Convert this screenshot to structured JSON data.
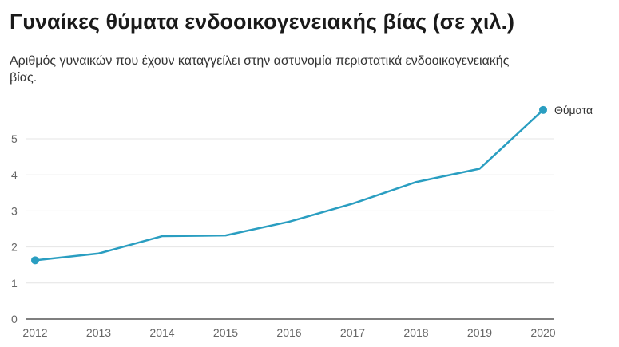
{
  "chart_data": {
    "type": "line",
    "title": "Γυναίκες θύματα ενδοοικογενειακής βίας (σε χιλ.)",
    "subtitle": "Αριθμός γυναικών που έχουν καταγγείλει στην αστυνομία περιστατικά ενδοοικογενειακής βίας.",
    "xlabel": "",
    "ylabel": "",
    "x": [
      "2012",
      "2013",
      "2014",
      "2015",
      "2016",
      "2017",
      "2018",
      "2019",
      "2020"
    ],
    "series": [
      {
        "name": "Θύματα",
        "values": [
          1.63,
          1.82,
          2.3,
          2.32,
          2.7,
          3.2,
          3.8,
          4.17,
          5.8
        ],
        "color": "#2a9ec1"
      }
    ],
    "ylim": [
      0,
      6
    ],
    "yticks": [
      0,
      1,
      2,
      3,
      4,
      5
    ],
    "grid": true,
    "legend": "end-of-line label"
  }
}
